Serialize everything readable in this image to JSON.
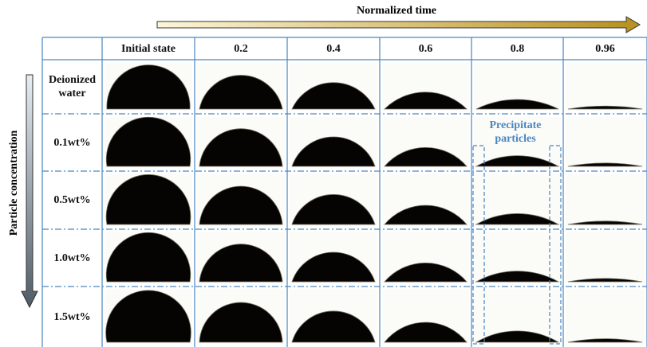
{
  "time_axis": "Normalized time",
  "concentration_axis": "Particle concentration",
  "table": {
    "columns": [
      "Initial state",
      "0.2",
      "0.4",
      "0.6",
      "0.8",
      "0.96"
    ],
    "rows": [
      "Deionized water",
      "0.1wt%",
      "0.5wt%",
      "1.0wt%",
      "1.5wt%"
    ]
  },
  "annotation": "Precipitate particles"
}
